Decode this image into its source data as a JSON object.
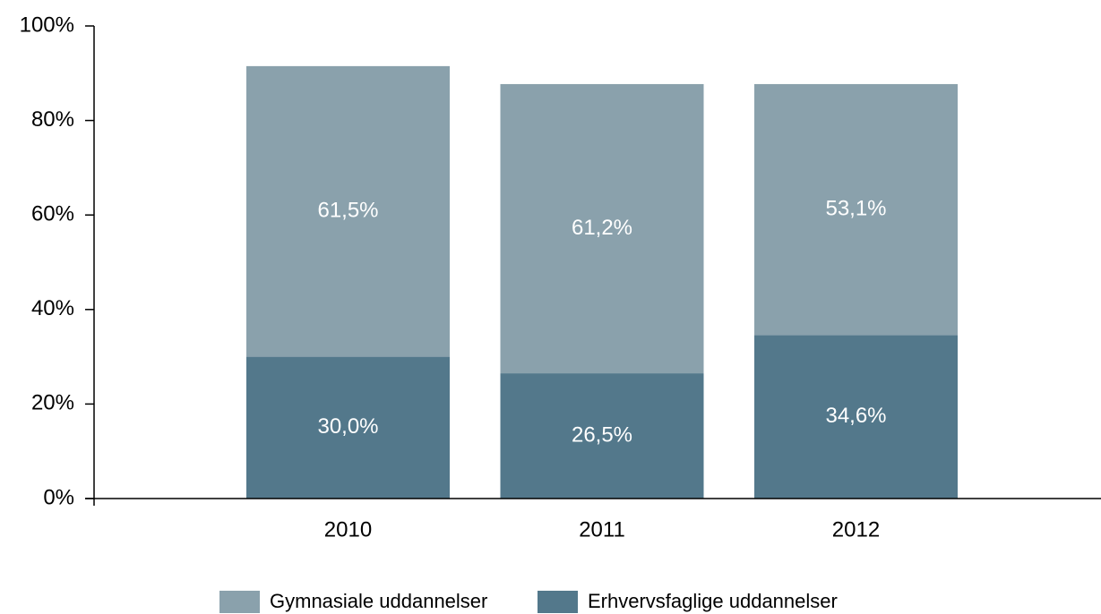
{
  "chart_data": {
    "type": "stacked_bar",
    "categories": [
      "2010",
      "2011",
      "2012"
    ],
    "series": [
      {
        "name": "Gymnasiale uddannelser",
        "color": "#8aa1ac",
        "values": [
          61.5,
          61.2,
          53.1
        ],
        "value_labels": [
          "61,5%",
          "61,2%",
          "53,1%"
        ]
      },
      {
        "name": "Erhvervsfaglige uddannelser",
        "color": "#53788b",
        "values": [
          30.0,
          26.5,
          34.6
        ],
        "value_labels": [
          "30,0%",
          "26,5%",
          "34,6%"
        ]
      }
    ],
    "ylim": [
      0,
      100
    ],
    "yticks": [
      {
        "value": 0,
        "label": "0%"
      },
      {
        "value": 20,
        "label": "20%"
      },
      {
        "value": 40,
        "label": "40%"
      },
      {
        "value": 60,
        "label": "60%"
      },
      {
        "value": 80,
        "label": "80%"
      },
      {
        "value": 100,
        "label": "100%"
      }
    ],
    "legend": "bottom"
  }
}
